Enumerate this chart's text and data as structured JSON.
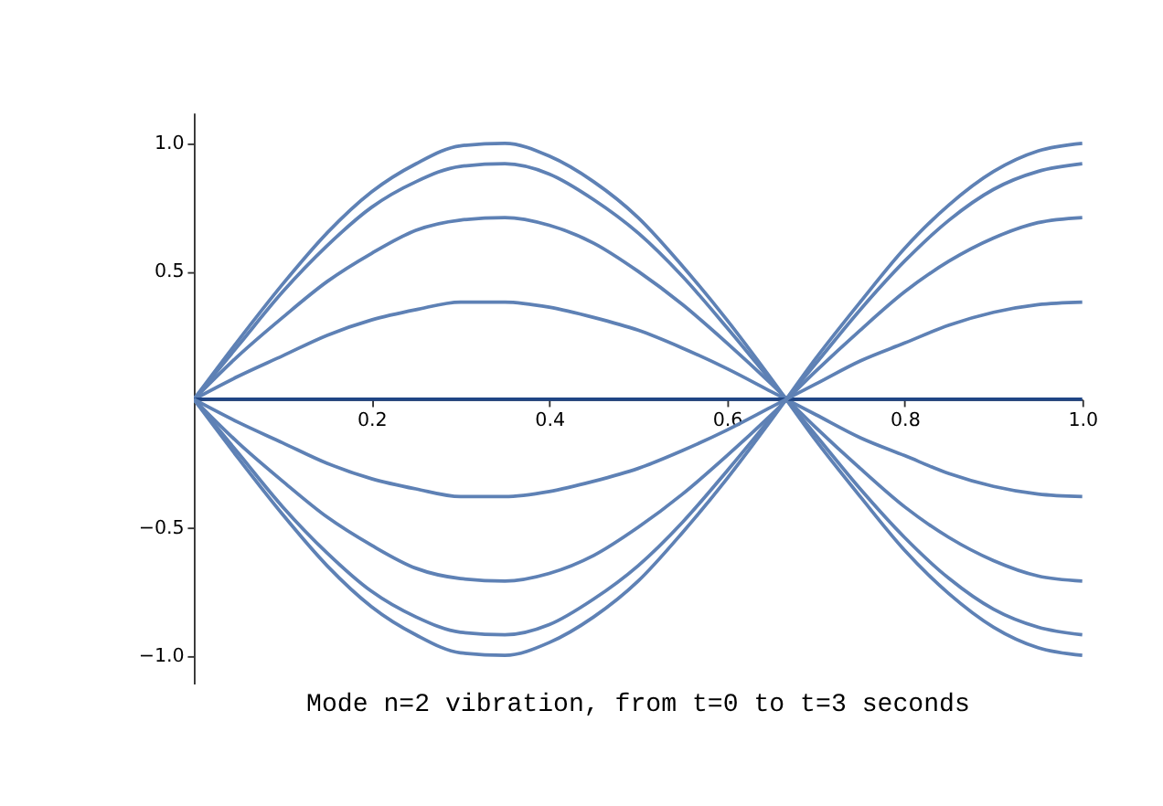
{
  "chart_data": {
    "type": "line",
    "title": "Mode n=2 vibration, from t=0 to t=3 seconds",
    "x": [
      0,
      0.05,
      0.1,
      0.15,
      0.2,
      0.25,
      0.3,
      0.35,
      0.4,
      0.45,
      0.5,
      0.55,
      0.6,
      0.65,
      0.7,
      0.75,
      0.8,
      0.85,
      0.9,
      0.95,
      1.0
    ],
    "series": [
      {
        "color": "#5e81b5",
        "values": [
          0,
          0.23,
          0.45,
          0.65,
          0.81,
          0.92,
          0.99,
          1.0,
          0.95,
          0.85,
          0.71,
          0.52,
          0.31,
          0.08,
          -0.16,
          -0.38,
          -0.59,
          -0.76,
          -0.89,
          -0.97,
          -1.0
        ]
      },
      {
        "color": "#5e81b5",
        "values": [
          0,
          0.21,
          0.42,
          0.6,
          0.75,
          0.85,
          0.91,
          0.92,
          0.88,
          0.78,
          0.65,
          0.48,
          0.28,
          0.07,
          -0.14,
          -0.35,
          -0.54,
          -0.7,
          -0.82,
          -0.89,
          -0.92
        ]
      },
      {
        "color": "#5e81b5",
        "values": [
          0,
          0.17,
          0.32,
          0.46,
          0.57,
          0.66,
          0.7,
          0.71,
          0.68,
          0.61,
          0.5,
          0.37,
          0.22,
          0.06,
          -0.11,
          -0.27,
          -0.42,
          -0.54,
          -0.63,
          -0.69,
          -0.71
        ]
      },
      {
        "color": "#5e81b5",
        "values": [
          0,
          0.09,
          0.17,
          0.25,
          0.31,
          0.35,
          0.38,
          0.38,
          0.36,
          0.32,
          0.27,
          0.2,
          0.12,
          0.03,
          -0.06,
          -0.15,
          -0.22,
          -0.29,
          -0.34,
          -0.37,
          -0.38
        ]
      },
      {
        "color": "#1f4585",
        "values": [
          0,
          0,
          0,
          0,
          0,
          0,
          0,
          0,
          0,
          0,
          0,
          0,
          0,
          0,
          0,
          0,
          0,
          0,
          0,
          0,
          0
        ]
      },
      {
        "color": "#5e81b5",
        "values": [
          0,
          -0.09,
          -0.17,
          -0.25,
          -0.31,
          -0.35,
          -0.38,
          -0.38,
          -0.36,
          -0.32,
          -0.27,
          -0.2,
          -0.12,
          -0.03,
          0.06,
          0.15,
          0.22,
          0.29,
          0.34,
          0.37,
          0.38
        ]
      },
      {
        "color": "#5e81b5",
        "values": [
          0,
          -0.17,
          -0.32,
          -0.46,
          -0.57,
          -0.66,
          -0.7,
          -0.71,
          -0.68,
          -0.61,
          -0.5,
          -0.37,
          -0.22,
          -0.06,
          0.11,
          0.27,
          0.42,
          0.54,
          0.63,
          0.69,
          0.71
        ]
      },
      {
        "color": "#5e81b5",
        "values": [
          0,
          -0.21,
          -0.42,
          -0.6,
          -0.75,
          -0.85,
          -0.91,
          -0.92,
          -0.88,
          -0.78,
          -0.65,
          -0.48,
          -0.28,
          -0.07,
          0.14,
          0.35,
          0.54,
          0.7,
          0.82,
          0.89,
          0.92
        ]
      },
      {
        "color": "#5e81b5",
        "values": [
          0,
          -0.23,
          -0.45,
          -0.65,
          -0.81,
          -0.92,
          -0.99,
          -1.0,
          -0.95,
          -0.85,
          -0.71,
          -0.52,
          -0.31,
          -0.08,
          0.16,
          0.38,
          0.59,
          0.76,
          0.89,
          0.97,
          1.0
        ]
      }
    ],
    "xlim": [
      0,
      1.0
    ],
    "ylim": [
      -1.11,
      1.12
    ],
    "xticks": [
      0.2,
      0.4,
      0.6,
      0.8,
      {
        "value": 1.0,
        "label": "1.0"
      }
    ],
    "yticks": [
      {
        "value": -1.0,
        "label": "−1.0"
      },
      {
        "value": -0.5,
        "label": "−0.5"
      },
      0.5,
      {
        "value": 1.0,
        "label": "1.0"
      }
    ],
    "grid": false,
    "legend": false,
    "marker": "none",
    "line_style": "solid"
  }
}
